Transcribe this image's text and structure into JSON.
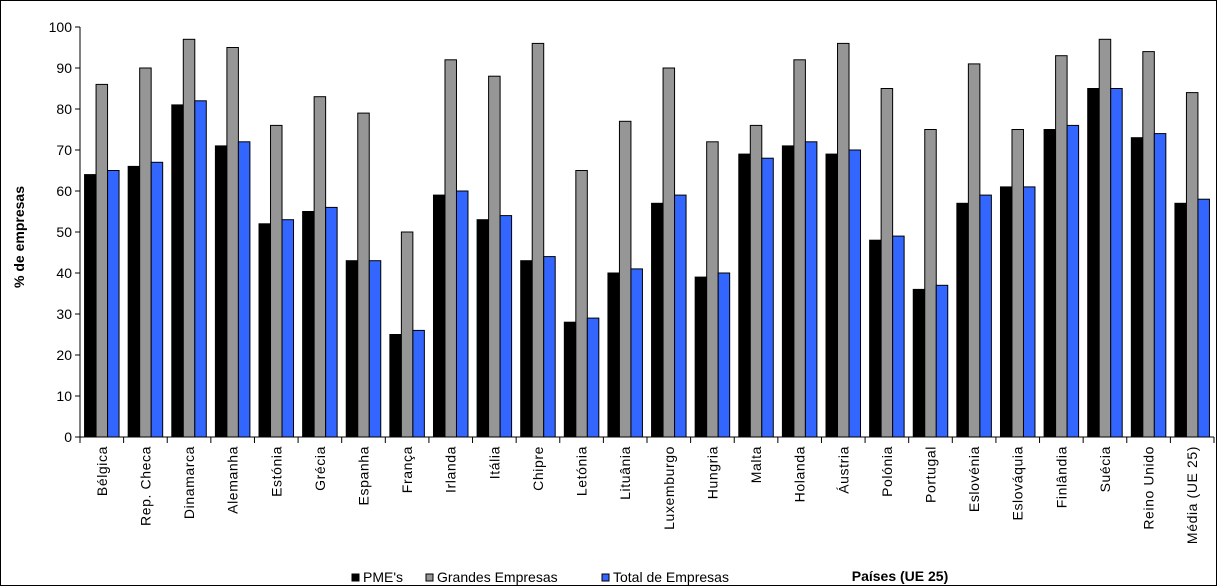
{
  "chart_data": {
    "type": "bar",
    "title": "",
    "xlabel": "Países (UE 25)",
    "ylabel": "% de empresas",
    "ylim": [
      0,
      100
    ],
    "yticks": [
      0,
      10,
      20,
      30,
      40,
      50,
      60,
      70,
      80,
      90,
      100
    ],
    "grid": false,
    "legend_position": "bottom",
    "categories": [
      "Bélgica",
      "Rep. Checa",
      "Dinamarca",
      "Alemanha",
      "Estónia",
      "Grécia",
      "Espanha",
      "França",
      "Irlanda",
      "Itália",
      "Chipre",
      "Letónia",
      "Lituânia",
      "Luxemburgo",
      "Hungria",
      "Malta",
      "Holanda",
      "Áustria",
      "Polónia",
      "Portugal",
      "Eslovénia",
      "Eslováquia",
      "Finlândia",
      "Suécia",
      "Reino Unido",
      "Média (UE 25)"
    ],
    "series": [
      {
        "name": "PME's",
        "color": "#000000",
        "values": [
          64,
          66,
          81,
          71,
          52,
          55,
          43,
          25,
          59,
          53,
          43,
          28,
          40,
          57,
          39,
          69,
          71,
          69,
          48,
          36,
          57,
          61,
          75,
          85,
          73,
          57
        ]
      },
      {
        "name": "Grandes Empresas",
        "color": "#969696",
        "values": [
          86,
          90,
          97,
          95,
          76,
          83,
          79,
          50,
          92,
          88,
          96,
          65,
          77,
          90,
          72,
          76,
          92,
          96,
          85,
          75,
          91,
          75,
          93,
          97,
          94,
          84
        ]
      },
      {
        "name": "Total de Empresas",
        "color": "#3366FF",
        "values": [
          65,
          67,
          82,
          72,
          53,
          56,
          43,
          26,
          60,
          54,
          44,
          29,
          41,
          59,
          40,
          68,
          72,
          70,
          49,
          37,
          59,
          61,
          76,
          85,
          74,
          58
        ]
      }
    ]
  }
}
